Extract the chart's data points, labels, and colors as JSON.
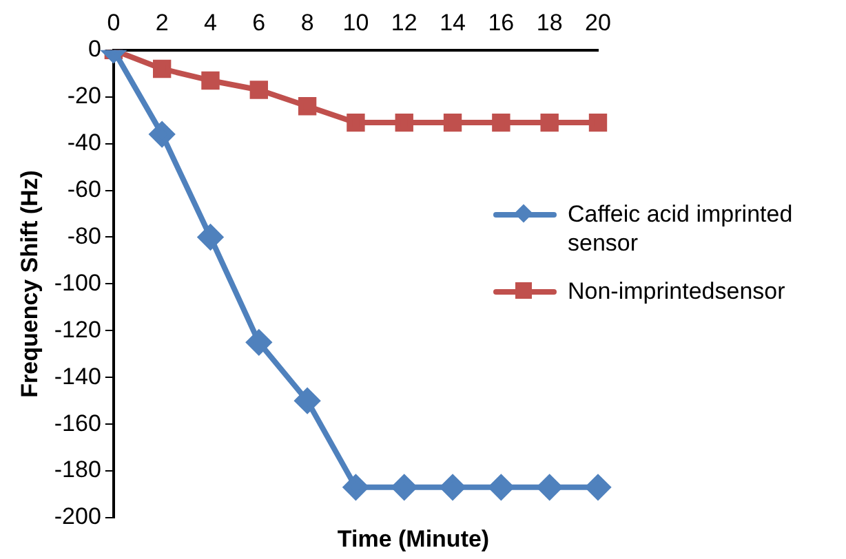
{
  "chart_data": {
    "type": "line",
    "xlabel": "Time (Minute)",
    "ylabel": "Frequency Shift (Hz)",
    "categories": [
      "0",
      "2",
      "4",
      "6",
      "8",
      "10",
      "12",
      "14",
      "16",
      "18",
      "20"
    ],
    "series": [
      {
        "name": "Caffeic acid imprinted sensor",
        "color": "#4f81bd",
        "marker": "diamond",
        "values": [
          0,
          -36,
          -80,
          -125,
          -150,
          -187,
          -187,
          -187,
          -187,
          -187,
          -187
        ]
      },
      {
        "name": "Non-imprintedsensor",
        "color": "#c0504d",
        "marker": "square",
        "values": [
          0,
          -8,
          -13,
          -17,
          -24,
          -31,
          -31,
          -31,
          -31,
          -31,
          -31
        ]
      }
    ],
    "ylim": [
      -200,
      0
    ],
    "yticks": [
      -200,
      -180,
      -160,
      -140,
      -120,
      -100,
      -80,
      -60,
      -40,
      -20,
      0
    ],
    "grid": false,
    "legend": "right",
    "line_style": "solid"
  }
}
